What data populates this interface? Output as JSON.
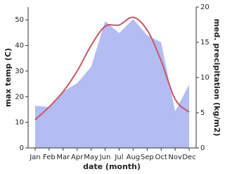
{
  "chart_data": {
    "type": "combo",
    "categories": [
      "Jan",
      "Feb",
      "Mar",
      "Apr",
      "May",
      "Jun",
      "Jul",
      "Aug",
      "Sep",
      "Oct",
      "Nov",
      "Dec"
    ],
    "x_label": "date (month)",
    "y_label": "max temp (C)",
    "y2_label": "med. precipitation (kg/m2)",
    "ylim": [
      0,
      55
    ],
    "yticks": [
      0,
      10,
      20,
      30,
      40,
      50
    ],
    "y2lim": [
      0,
      20
    ],
    "y2ticks": [
      0,
      5,
      10,
      15,
      20
    ],
    "series": [
      {
        "name": "precipitation",
        "type": "area",
        "axis": "y2",
        "color": "#b3bdf2",
        "values": [
          6.0,
          5.8,
          8.0,
          9.2,
          11.5,
          18.0,
          16.3,
          18.3,
          16.0,
          15.0,
          5.2,
          9.0
        ]
      },
      {
        "name": "temperature",
        "type": "line",
        "axis": "y",
        "color": "#c85563",
        "values": [
          11,
          16,
          22,
          30,
          40,
          47.5,
          48,
          51,
          46,
          34,
          19,
          14
        ]
      }
    ]
  }
}
